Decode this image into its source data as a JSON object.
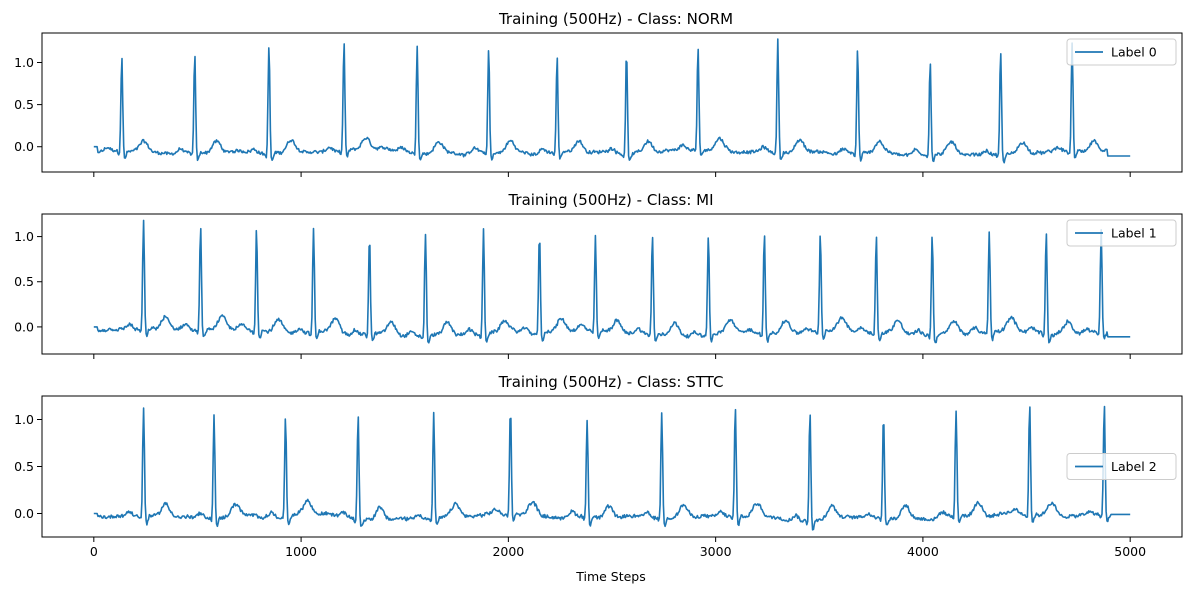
{
  "figure": {
    "xlabel": "Time Steps"
  },
  "chart_data": [
    {
      "type": "line",
      "title": "Training (500Hz) - Class: NORM",
      "xlim": [
        -250,
        5250
      ],
      "ylim": [
        -0.3,
        1.35
      ],
      "xticks": [
        0,
        1000,
        2000,
        3000,
        4000,
        5000
      ],
      "yticks": [
        -0.0,
        0.5,
        1.0
      ],
      "ytick_labels": [
        "0.0",
        "0.5",
        "1.0"
      ],
      "show_xtick_labels": false,
      "legend_position": "top-right",
      "series": [
        {
          "name": "Label 0",
          "color": "#1f77b4",
          "signal_end": 4890,
          "tail_value": -0.11,
          "baseline_value": -0.07,
          "r_peaks": [
            {
              "x": 135,
              "y": 1.07
            },
            {
              "x": 487,
              "y": 1.1
            },
            {
              "x": 845,
              "y": 1.23
            },
            {
              "x": 1207,
              "y": 1.23
            },
            {
              "x": 1560,
              "y": 1.21
            },
            {
              "x": 1905,
              "y": 1.18
            },
            {
              "x": 2235,
              "y": 1.08
            },
            {
              "x": 2570,
              "y": 1.15
            },
            {
              "x": 2915,
              "y": 1.15
            },
            {
              "x": 3300,
              "y": 1.26
            },
            {
              "x": 3685,
              "y": 1.18
            },
            {
              "x": 4035,
              "y": 1.06
            },
            {
              "x": 4375,
              "y": 1.17
            },
            {
              "x": 4720,
              "y": 1.21
            }
          ]
        }
      ]
    },
    {
      "type": "line",
      "title": "Training (500Hz) - Class: MI",
      "xlim": [
        -250,
        5250
      ],
      "ylim": [
        -0.3,
        1.25
      ],
      "xticks": [
        0,
        1000,
        2000,
        3000,
        4000,
        5000
      ],
      "yticks": [
        -0.0,
        0.5,
        1.0
      ],
      "ytick_labels": [
        "0.0",
        "0.5",
        "1.0"
      ],
      "show_xtick_labels": false,
      "legend_position": "top-right",
      "series": [
        {
          "name": "Label 1",
          "color": "#1f77b4",
          "signal_end": 4890,
          "tail_value": -0.11,
          "baseline_value": -0.06,
          "r_peaks": [
            {
              "x": 240,
              "y": 1.15
            },
            {
              "x": 515,
              "y": 1.1
            },
            {
              "x": 785,
              "y": 1.09
            },
            {
              "x": 1060,
              "y": 1.1
            },
            {
              "x": 1330,
              "y": 1.05
            },
            {
              "x": 1600,
              "y": 1.07
            },
            {
              "x": 1880,
              "y": 1.11
            },
            {
              "x": 2150,
              "y": 1.05
            },
            {
              "x": 2420,
              "y": 0.99
            },
            {
              "x": 2695,
              "y": 1.04
            },
            {
              "x": 2965,
              "y": 1.06
            },
            {
              "x": 3235,
              "y": 1.05
            },
            {
              "x": 3505,
              "y": 1.04
            },
            {
              "x": 3775,
              "y": 1.04
            },
            {
              "x": 4045,
              "y": 1.06
            },
            {
              "x": 4320,
              "y": 1.05
            },
            {
              "x": 4595,
              "y": 1.08
            },
            {
              "x": 4860,
              "y": 1.06
            }
          ]
        }
      ]
    },
    {
      "type": "line",
      "title": "Training (500Hz) - Class: STTC",
      "xlim": [
        -250,
        5250
      ],
      "ylim": [
        -0.25,
        1.25
      ],
      "xticks": [
        0,
        1000,
        2000,
        3000,
        4000,
        5000
      ],
      "xtick_labels": [
        "0",
        "1000",
        "2000",
        "3000",
        "4000",
        "5000"
      ],
      "yticks": [
        -0.0,
        0.5,
        1.0
      ],
      "ytick_labels": [
        "0.0",
        "0.5",
        "1.0"
      ],
      "show_xtick_labels": true,
      "legend_position": "center-right",
      "series": [
        {
          "name": "Label 2",
          "color": "#1f77b4",
          "signal_end": 4905,
          "tail_value": -0.01,
          "baseline_value": -0.03,
          "r_peaks": [
            {
              "x": 240,
              "y": 1.12
            },
            {
              "x": 580,
              "y": 1.07
            },
            {
              "x": 925,
              "y": 1.03
            },
            {
              "x": 1275,
              "y": 1.08
            },
            {
              "x": 1640,
              "y": 1.09
            },
            {
              "x": 2010,
              "y": 1.12
            },
            {
              "x": 2380,
              "y": 1.01
            },
            {
              "x": 2740,
              "y": 1.11
            },
            {
              "x": 3095,
              "y": 1.14
            },
            {
              "x": 3455,
              "y": 1.13
            },
            {
              "x": 3810,
              "y": 1.09
            },
            {
              "x": 4160,
              "y": 1.09
            },
            {
              "x": 4515,
              "y": 1.17
            },
            {
              "x": 4875,
              "y": 1.16
            }
          ]
        }
      ]
    }
  ]
}
